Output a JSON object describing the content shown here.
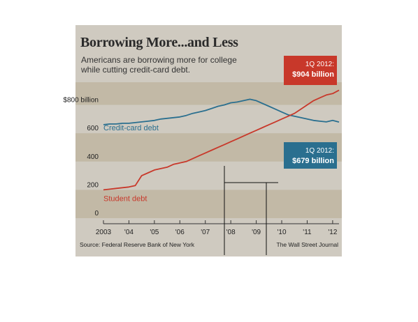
{
  "chart_data": {
    "type": "line",
    "title": "Borrowing More...and Less",
    "subtitle": "Americans are borrowing more for college while cutting credit-card debt.",
    "y_tick_labels": [
      "0",
      "200",
      "400",
      "600",
      "$800 billion"
    ],
    "y_ticks": [
      0,
      200,
      400,
      600,
      800
    ],
    "ylim": [
      0,
      960
    ],
    "xlim": [
      2003.0,
      2012.25
    ],
    "x_tick_labels": [
      "2003",
      "'04",
      "'05",
      "'06",
      "'07",
      "'08",
      "'09",
      "'10",
      "'11",
      "'12"
    ],
    "x_ticks": [
      2003,
      2004,
      2005,
      2006,
      2007,
      2008,
      2009,
      2010,
      2011,
      2012
    ],
    "grid": "alternating horizontal bands",
    "series": [
      {
        "name": "Credit-card debt",
        "color": "#2a6f8f",
        "x": [
          2003.0,
          2003.25,
          2003.5,
          2003.75,
          2004.0,
          2004.25,
          2004.5,
          2004.75,
          2005.0,
          2005.25,
          2005.5,
          2005.75,
          2006.0,
          2006.25,
          2006.5,
          2006.75,
          2007.0,
          2007.25,
          2007.5,
          2007.75,
          2008.0,
          2008.25,
          2008.5,
          2008.75,
          2009.0,
          2009.25,
          2009.5,
          2009.75,
          2010.0,
          2010.25,
          2010.5,
          2010.75,
          2011.0,
          2011.25,
          2011.5,
          2011.75,
          2012.0,
          2012.25
        ],
        "values": [
          660,
          665,
          665,
          670,
          670,
          675,
          680,
          685,
          690,
          700,
          705,
          710,
          715,
          725,
          740,
          750,
          760,
          775,
          790,
          800,
          815,
          820,
          830,
          840,
          830,
          810,
          790,
          770,
          750,
          730,
          720,
          710,
          700,
          690,
          685,
          680,
          690,
          679
        ]
      },
      {
        "name": "Student debt",
        "color": "#c8382a",
        "x": [
          2003.0,
          2003.25,
          2003.5,
          2003.75,
          2004.0,
          2004.25,
          2004.5,
          2004.75,
          2005.0,
          2005.25,
          2005.5,
          2005.75,
          2006.0,
          2006.25,
          2006.5,
          2006.75,
          2007.0,
          2007.25,
          2007.5,
          2007.75,
          2008.0,
          2008.25,
          2008.5,
          2008.75,
          2009.0,
          2009.25,
          2009.5,
          2009.75,
          2010.0,
          2010.25,
          2010.5,
          2010.75,
          2011.0,
          2011.25,
          2011.5,
          2011.75,
          2012.0,
          2012.25
        ],
        "values": [
          200,
          205,
          210,
          215,
          220,
          230,
          300,
          320,
          340,
          350,
          360,
          380,
          390,
          400,
          420,
          440,
          460,
          480,
          500,
          520,
          540,
          560,
          580,
          600,
          620,
          640,
          660,
          680,
          700,
          720,
          740,
          770,
          800,
          830,
          850,
          870,
          880,
          904
        ]
      }
    ],
    "annotations": [
      {
        "label": "1Q 2012:",
        "value_label": "$904 billion",
        "color": "#c8382a"
      },
      {
        "label": "1Q 2012:",
        "value_label": "$679 billion",
        "color": "#2a6f8f"
      }
    ],
    "source": "Source: Federal Reserve Bank of New York",
    "credit": "The Wall Street Journal"
  }
}
